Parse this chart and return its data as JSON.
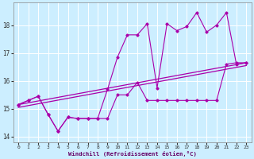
{
  "title": "",
  "xlabel": "Windchill (Refroidissement éolien,°C)",
  "bg_color": "#cceeff",
  "line_color": "#aa00aa",
  "grid_color": "#ffffff",
  "xlim": [
    -0.5,
    23.5
  ],
  "ylim": [
    13.8,
    18.8
  ],
  "yticks": [
    14,
    15,
    16,
    17,
    18
  ],
  "xticks": [
    0,
    1,
    2,
    3,
    4,
    5,
    6,
    7,
    8,
    9,
    10,
    11,
    12,
    13,
    14,
    15,
    16,
    17,
    18,
    19,
    20,
    21,
    22,
    23
  ],
  "series1_x": [
    0,
    1,
    2,
    3,
    4,
    5,
    6,
    7,
    8,
    9,
    10,
    11,
    12,
    13,
    14,
    15,
    16,
    17,
    18,
    19,
    20,
    21,
    22,
    23
  ],
  "series1_y": [
    15.15,
    15.3,
    15.45,
    14.8,
    14.2,
    14.7,
    14.65,
    14.65,
    14.65,
    14.65,
    15.5,
    15.5,
    15.95,
    15.3,
    15.3,
    15.3,
    15.3,
    15.3,
    15.3,
    15.3,
    15.3,
    16.6,
    16.65,
    16.65
  ],
  "series2_x": [
    0,
    1,
    2,
    3,
    4,
    5,
    6,
    7,
    8,
    9,
    10,
    11,
    12,
    13,
    14,
    15,
    16,
    17,
    18,
    19,
    20,
    21,
    22,
    23
  ],
  "series2_y": [
    15.15,
    15.3,
    15.45,
    14.8,
    14.2,
    14.7,
    14.65,
    14.65,
    14.65,
    15.7,
    16.85,
    17.65,
    17.65,
    18.05,
    15.75,
    18.05,
    17.8,
    17.95,
    18.45,
    17.75,
    18.0,
    18.45,
    16.6,
    16.65
  ],
  "trend1_x0": 0,
  "trend1_y0": 15.15,
  "trend1_x1": 23,
  "trend1_y1": 16.65,
  "trend2_x0": 0,
  "trend2_y0": 15.05,
  "trend2_x1": 23,
  "trend2_y1": 16.55
}
